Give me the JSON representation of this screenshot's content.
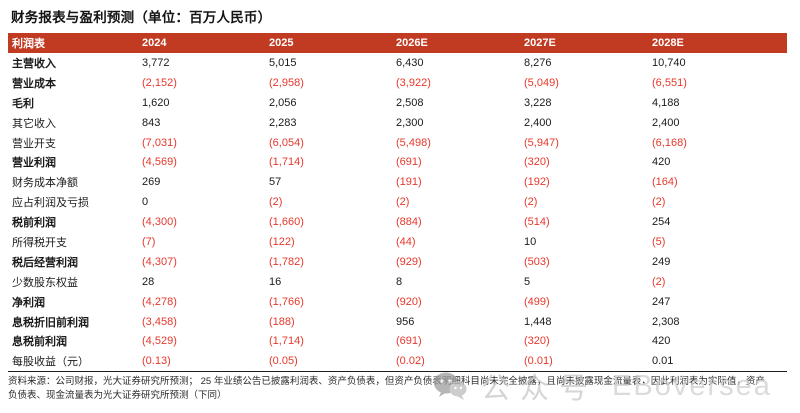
{
  "title": "财务报表与盈利预测（单位：百万人民币）",
  "table": {
    "header": [
      "利润表",
      "2024",
      "2025",
      "2026E",
      "2027E",
      "2028E"
    ],
    "rows": [
      {
        "label": "主营收入",
        "bold": true,
        "values": [
          "3,772",
          "5,015",
          "6,430",
          "8,276",
          "10,740"
        ]
      },
      {
        "label": "营业成本",
        "bold": true,
        "values": [
          "(2,152)",
          "(2,958)",
          "(3,922)",
          "(5,049)",
          "(6,551)"
        ]
      },
      {
        "label": "毛利",
        "bold": true,
        "values": [
          "1,620",
          "2,056",
          "2,508",
          "3,228",
          "4,188"
        ]
      },
      {
        "label": "其它收入",
        "bold": false,
        "values": [
          "843",
          "2,283",
          "2,300",
          "2,400",
          "2,400"
        ]
      },
      {
        "label": "营业开支",
        "bold": false,
        "values": [
          "(7,031)",
          "(6,054)",
          "(5,498)",
          "(5,947)",
          "(6,168)"
        ]
      },
      {
        "label": "营业利润",
        "bold": true,
        "values": [
          "(4,569)",
          "(1,714)",
          "(691)",
          "(320)",
          "420"
        ]
      },
      {
        "label": "财务成本净额",
        "bold": false,
        "values": [
          "269",
          "57",
          "(191)",
          "(192)",
          "(164)"
        ]
      },
      {
        "label": "应占利润及亏损",
        "bold": false,
        "values": [
          "0",
          "(2)",
          "(2)",
          "(2)",
          "(2)"
        ]
      },
      {
        "label": "税前利润",
        "bold": true,
        "values": [
          "(4,300)",
          "(1,660)",
          "(884)",
          "(514)",
          "254"
        ]
      },
      {
        "label": "所得税开支",
        "bold": false,
        "values": [
          "(7)",
          "(122)",
          "(44)",
          "10",
          "(5)"
        ]
      },
      {
        "label": "税后经营利润",
        "bold": true,
        "values": [
          "(4,307)",
          "(1,782)",
          "(929)",
          "(503)",
          "249"
        ]
      },
      {
        "label": "少数股东权益",
        "bold": false,
        "values": [
          "28",
          "16",
          "8",
          "5",
          "(2)"
        ]
      },
      {
        "label": "净利润",
        "bold": true,
        "values": [
          "(4,278)",
          "(1,766)",
          "(920)",
          "(499)",
          "247"
        ]
      },
      {
        "label": "息税折旧前利润",
        "bold": true,
        "values": [
          "(3,458)",
          "(188)",
          "956",
          "1,448",
          "2,308"
        ]
      },
      {
        "label": "息税前利润",
        "bold": true,
        "values": [
          "(4,529)",
          "(1,714)",
          "(691)",
          "(320)",
          "420"
        ]
      },
      {
        "label": "每股收益（元）",
        "bold": false,
        "values": [
          "(0.13)",
          "(0.05)",
          "(0.02)",
          "(0.01)",
          "0.01"
        ]
      }
    ]
  },
  "footer": {
    "line1": "资料来源：公司财报，光大证券研究所预测； 25 年业绩公告已披露利润表、资产负债表，但资产负债表明细科目尚未完全披露，且尚未披露现金流量表，因此利润表为实际值，资产",
    "line2": "负债表、现金流量表为光大证券研究所预测（下同）"
  },
  "watermark": {
    "icon": "wechat-icon",
    "label": "公众号",
    "brand": "EBoversea"
  },
  "colors": {
    "header_bg": "#C13A22",
    "header_text": "#FFFFFF",
    "negative_value": "#E6382C",
    "positive_value": "#1A1A1A",
    "watermark_gray": "#C9C9C9"
  }
}
